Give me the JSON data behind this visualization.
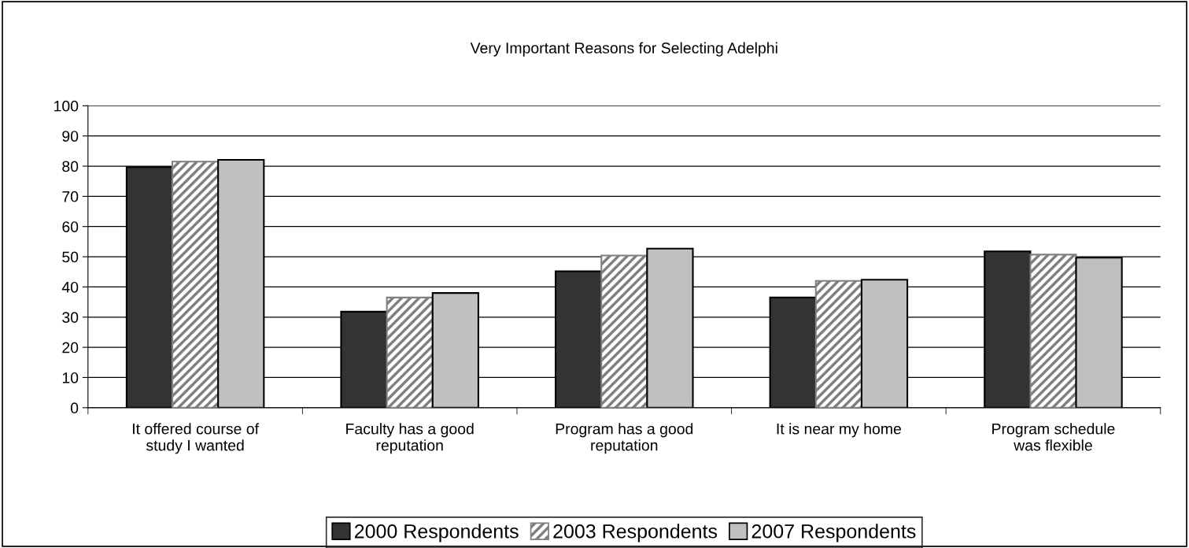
{
  "chart_data": {
    "type": "bar",
    "title": "Very Important Reasons for Selecting Adelphi",
    "categories": [
      "It offered course of\nstudy I wanted",
      "Faculty has a good\nreputation",
      "Program has a good\nreputation",
      "It is near my home",
      "Program schedule\nwas flexible"
    ],
    "series": [
      {
        "name": "2000 Respondents",
        "color": "#333333",
        "values": [
          79.7,
          31.8,
          45.2,
          36.5,
          51.8
        ]
      },
      {
        "name": "2003 Respondents",
        "color": "#808080",
        "values": [
          81.5,
          36.5,
          50.4,
          42.0,
          50.7
        ]
      },
      {
        "name": "2007 Respondents",
        "color": "#c0c0c0",
        "values": [
          82.1,
          38.0,
          52.7,
          42.4,
          49.7
        ]
      }
    ],
    "ylim": [
      0,
      100
    ],
    "yticks": [
      0,
      10,
      20,
      30,
      40,
      50,
      60,
      70,
      80,
      90,
      100
    ],
    "grid": "y",
    "legend": "bottom"
  }
}
